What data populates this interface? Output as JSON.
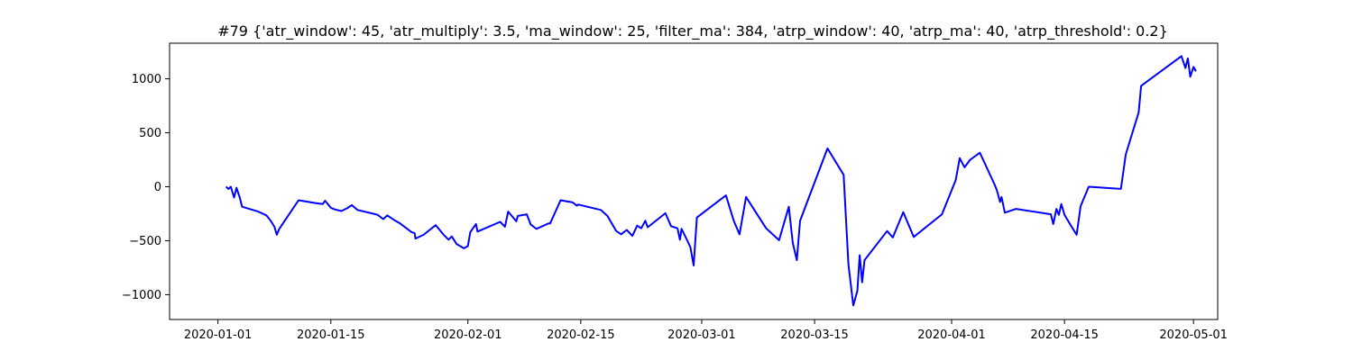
{
  "chart_data": {
    "type": "line",
    "title": "#79 {'atr_window': 45, 'atr_multiply': 3.5, 'ma_window': 25, 'filter_ma': 384, 'atrp_window': 40, 'atrp_ma': 40, 'atrp_threshold': 0.2}",
    "xlabel": "",
    "ylabel": "",
    "grid": false,
    "xlim": [
      "2019-12-26",
      "2020-05-04"
    ],
    "ylim": [
      -1230,
      1330
    ],
    "x_ticks": [
      "2020-01-01",
      "2020-01-15",
      "2020-02-01",
      "2020-02-15",
      "2020-03-01",
      "2020-03-15",
      "2020-04-01",
      "2020-04-15",
      "2020-05-01"
    ],
    "y_ticks": [
      -1000,
      -500,
      0,
      500,
      1000
    ],
    "series": [
      {
        "color": "#0000ff",
        "points": [
          [
            "2020-01-02",
            0
          ],
          [
            "2020-01-02.3",
            -20
          ],
          [
            "2020-01-02.6",
            0
          ],
          [
            "2020-01-03",
            -100
          ],
          [
            "2020-01-03.3",
            -10
          ],
          [
            "2020-01-03.7",
            -100
          ],
          [
            "2020-01-04",
            -185
          ],
          [
            "2020-01-06",
            -230
          ],
          [
            "2020-01-07",
            -265
          ],
          [
            "2020-01-07.5",
            -310
          ],
          [
            "2020-01-08",
            -370
          ],
          [
            "2020-01-08.3",
            -445
          ],
          [
            "2020-01-08.6",
            -390
          ],
          [
            "2020-01-11",
            -125
          ],
          [
            "2020-01-13",
            -150
          ],
          [
            "2020-01-14",
            -160
          ],
          [
            "2020-01-14.3",
            -130
          ],
          [
            "2020-01-15",
            -195
          ],
          [
            "2020-01-15.5",
            -210
          ],
          [
            "2020-01-16.3",
            -225
          ],
          [
            "2020-01-17",
            -200
          ],
          [
            "2020-01-17.6",
            -170
          ],
          [
            "2020-01-18.3",
            -215
          ],
          [
            "2020-01-20",
            -245
          ],
          [
            "2020-01-20.8",
            -260
          ],
          [
            "2020-01-21.5",
            -300
          ],
          [
            "2020-01-22",
            -265
          ],
          [
            "2020-01-23",
            -315
          ],
          [
            "2020-01-23.6",
            -340
          ],
          [
            "2020-01-25",
            -420
          ],
          [
            "2020-01-25.4",
            -430
          ],
          [
            "2020-01-25.5",
            -480
          ],
          [
            "2020-01-26.5",
            -445
          ],
          [
            "2020-01-28",
            -355
          ],
          [
            "2020-01-29",
            -445
          ],
          [
            "2020-01-29.6",
            -490
          ],
          [
            "2020-01-30",
            -460
          ],
          [
            "2020-01-30.6",
            -530
          ],
          [
            "2020-01-31.5",
            -570
          ],
          [
            "2020-02-01",
            -550
          ],
          [
            "2020-02-01.3",
            -420
          ],
          [
            "2020-02-02",
            -345
          ],
          [
            "2020-02-02.2",
            -415
          ],
          [
            "2020-02-05",
            -325
          ],
          [
            "2020-02-05.6",
            -370
          ],
          [
            "2020-02-06",
            -230
          ],
          [
            "2020-02-07",
            -320
          ],
          [
            "2020-02-07.2",
            -270
          ],
          [
            "2020-02-08.3",
            -255
          ],
          [
            "2020-02-08.8",
            -350
          ],
          [
            "2020-02-09.5",
            -390
          ],
          [
            "2020-02-11",
            -340
          ],
          [
            "2020-02-11.2",
            -340
          ],
          [
            "2020-02-12.5",
            -125
          ],
          [
            "2020-02-14",
            -145
          ],
          [
            "2020-02-14.5",
            -175
          ],
          [
            "2020-02-14.7",
            -165
          ],
          [
            "2020-02-17.5",
            -215
          ],
          [
            "2020-02-18.3",
            -270
          ],
          [
            "2020-02-19.4",
            -410
          ],
          [
            "2020-02-20",
            -440
          ],
          [
            "2020-02-20.7",
            -400
          ],
          [
            "2020-02-21.4",
            -455
          ],
          [
            "2020-02-22",
            -360
          ],
          [
            "2020-02-22.5",
            -385
          ],
          [
            "2020-02-23",
            -315
          ],
          [
            "2020-02-23.3",
            -375
          ],
          [
            "2020-02-25.5",
            -245
          ],
          [
            "2020-02-26.2",
            -365
          ],
          [
            "2020-02-27",
            -385
          ],
          [
            "2020-02-27.3",
            -490
          ],
          [
            "2020-02-27.5",
            -390
          ],
          [
            "2020-02-28.2",
            -495
          ],
          [
            "2020-02-28.6",
            -560
          ],
          [
            "2020-02-29",
            -730
          ],
          [
            "2020-02-29.4",
            -285
          ],
          [
            "2020-03-04",
            -80
          ],
          [
            "2020-03-05",
            -320
          ],
          [
            "2020-03-05.7",
            -440
          ],
          [
            "2020-03-06.5",
            -95
          ],
          [
            "2020-03-09",
            -385
          ],
          [
            "2020-03-10.6",
            -495
          ],
          [
            "2020-03-11.8",
            -185
          ],
          [
            "2020-03-12.3",
            -520
          ],
          [
            "2020-03-12.8",
            -680
          ],
          [
            "2020-03-13.2",
            -315
          ],
          [
            "2020-03-16.6",
            355
          ],
          [
            "2020-03-18.6",
            110
          ],
          [
            "2020-03-19.2",
            -720
          ],
          [
            "2020-03-19.8",
            -1100
          ],
          [
            "2020-03-20.3",
            -965
          ],
          [
            "2020-03-20.6",
            -635
          ],
          [
            "2020-03-20.9",
            -885
          ],
          [
            "2020-03-21.2",
            -680
          ],
          [
            "2020-03-24",
            -410
          ],
          [
            "2020-03-24.7",
            -470
          ],
          [
            "2020-03-26",
            -235
          ],
          [
            "2020-03-27.3",
            -465
          ],
          [
            "2020-03-30.8",
            -255
          ],
          [
            "2020-04-01.5",
            60
          ],
          [
            "2020-04-02",
            265
          ],
          [
            "2020-04-02.6",
            180
          ],
          [
            "2020-04-03.3",
            250
          ],
          [
            "2020-04-04.5",
            315
          ],
          [
            "2020-04-06.3",
            25
          ],
          [
            "2020-04-06.6",
            -30
          ],
          [
            "2020-04-07",
            -140
          ],
          [
            "2020-04-07.2",
            -95
          ],
          [
            "2020-04-07.6",
            -240
          ],
          [
            "2020-04-09",
            -205
          ],
          [
            "2020-04-13.3",
            -255
          ],
          [
            "2020-04-13.6",
            -345
          ],
          [
            "2020-04-14",
            -205
          ],
          [
            "2020-04-14.3",
            -260
          ],
          [
            "2020-04-14.6",
            -160
          ],
          [
            "2020-04-15",
            -260
          ],
          [
            "2020-04-15.6",
            -335
          ],
          [
            "2020-04-16.5",
            -445
          ],
          [
            "2020-04-17",
            -180
          ],
          [
            "2020-04-18",
            0
          ],
          [
            "2020-04-22",
            -20
          ],
          [
            "2020-04-22.6",
            300
          ],
          [
            "2020-04-24.2",
            690
          ],
          [
            "2020-04-24.5",
            935
          ],
          [
            "2020-04-29.5",
            1210
          ],
          [
            "2020-04-30",
            1100
          ],
          [
            "2020-04-30.3",
            1190
          ],
          [
            "2020-04-30.6",
            1020
          ],
          [
            "2020-04-31",
            1110
          ],
          [
            "2020-04-31.3",
            1070
          ]
        ]
      }
    ]
  }
}
